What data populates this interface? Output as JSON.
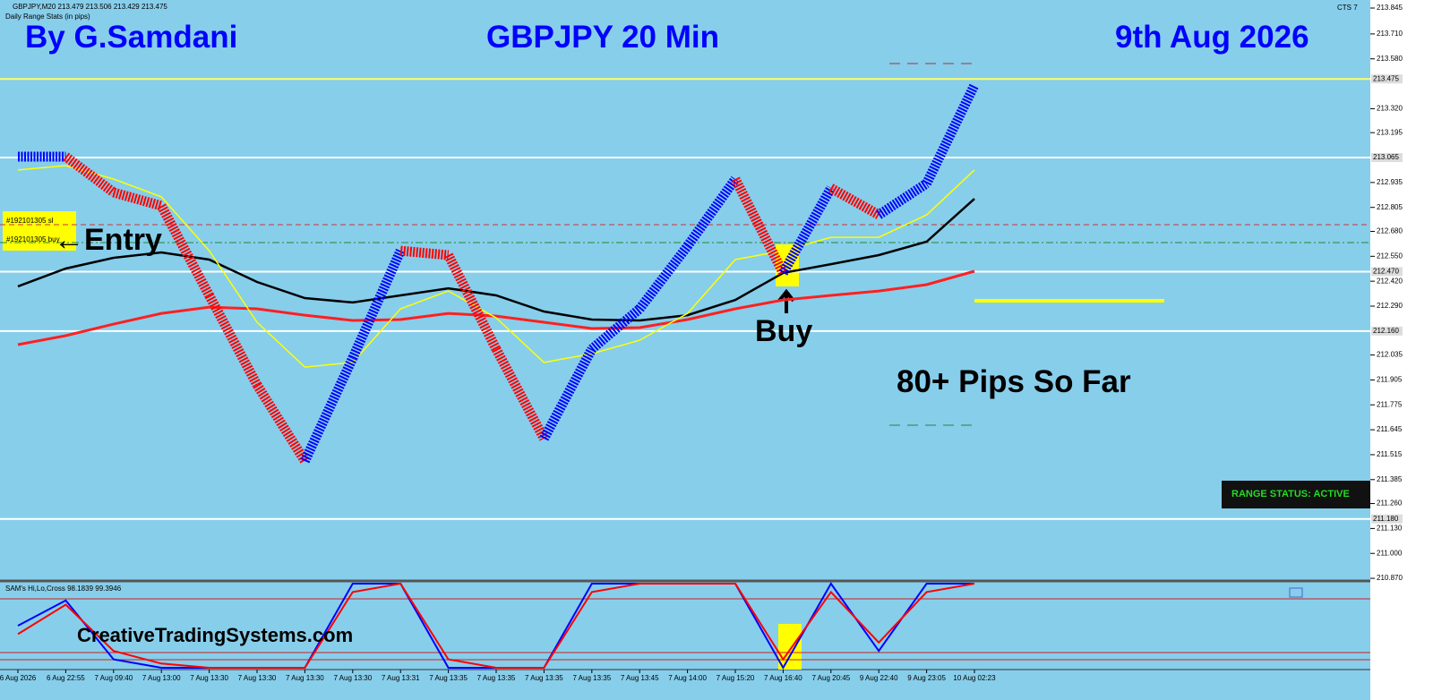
{
  "chart_data": [
    {
      "type": "line",
      "header": "GBPJPY,M20  213.479 213.506 213.429 213.475",
      "subheader": "Daily Range Stats (in pips)",
      "corner_label": "CTS 7",
      "categories": [
        "6 Aug 2026",
        "6 Aug 22:55",
        "7 Aug 09:40",
        "7 Aug 13:00",
        "7 Aug 13:30",
        "7 Aug 13:30",
        "7 Aug 13:30",
        "7 Aug 13:30",
        "7 Aug 13:31",
        "7 Aug 13:35",
        "7 Aug 13:35",
        "7 Aug 13:35",
        "7 Aug 13:35",
        "7 Aug 13:45",
        "7 Aug 14:00",
        "7 Aug 15:20",
        "7 Aug 16:40",
        "7 Aug 20:45",
        "9 Aug 22:40",
        "9 Aug 23:05",
        "10 Aug 02:23"
      ],
      "price": {
        "up_color": "#0000ff",
        "down_color": "#ff0000",
        "values": [
          213.07,
          213.07,
          212.883,
          212.813,
          212.346,
          211.879,
          211.482,
          212.019,
          212.579,
          212.556,
          212.066,
          211.599,
          212.066,
          212.276,
          212.603,
          212.953,
          212.463,
          212.906,
          212.766,
          212.93,
          213.443
        ]
      },
      "series": [
        {
          "color": "#ff2020",
          "width": 3,
          "values": [
            212.089,
            212.136,
            212.196,
            212.252,
            212.285,
            212.276,
            212.243,
            212.215,
            212.22,
            212.252,
            212.238,
            212.206,
            212.173,
            212.178,
            212.22,
            212.276,
            212.322,
            212.346,
            212.369,
            212.402,
            212.472
          ]
        },
        {
          "color": "#000000",
          "width": 2.5,
          "values": [
            212.393,
            212.486,
            212.542,
            212.57,
            212.533,
            212.416,
            212.332,
            212.309,
            212.346,
            212.383,
            212.346,
            212.262,
            212.22,
            212.215,
            212.243,
            212.322,
            212.463,
            212.509,
            212.556,
            212.626,
            212.85
          ]
        },
        {
          "color": "#ffff00",
          "width": 1.5,
          "values": [
            213.0,
            213.023,
            212.953,
            212.86,
            212.579,
            212.206,
            211.972,
            211.996,
            212.276,
            212.369,
            212.229,
            211.996,
            212.042,
            212.112,
            212.252,
            212.533,
            212.579,
            212.649,
            212.649,
            212.766,
            213.0
          ]
        }
      ],
      "ylim": [
        210.861,
        213.887
      ],
      "yticks": [
        213.845,
        {
          "value": 213.71,
          "label": "213.710"
        },
        {
          "value": 213.58,
          "label": "213.580"
        },
        {
          "value": 213.32,
          "label": "213.320"
        },
        213.195,
        212.935,
        212.805,
        {
          "value": 212.68,
          "label": "212.680"
        },
        {
          "value": 212.55,
          "label": "212.550"
        },
        {
          "value": 212.42,
          "label": "212.420"
        },
        {
          "value": 212.29,
          "label": "212.290"
        },
        212.035,
        211.905,
        211.775,
        211.645,
        211.515,
        211.385,
        {
          "value": 211.26,
          "label": "211.260"
        },
        {
          "value": 211.13,
          "label": "211.130"
        },
        {
          "value": 211.0,
          "label": "211.000"
        },
        {
          "value": 210.87,
          "label": "210.870"
        }
      ],
      "levels": [
        {
          "value": 213.475,
          "label": "213.475",
          "color": "#ffff66"
        },
        {
          "value": 213.065,
          "label": "213.065",
          "color": "#ffffff"
        },
        {
          "value": 212.47,
          "label": "212.470",
          "color": "#ffffff"
        },
        {
          "value": 212.16,
          "label": "212.160",
          "color": "#ffffff"
        },
        {
          "value": 211.18,
          "label": "211.180",
          "color": "#ffffff"
        }
      ],
      "annotations": {
        "author": "By G.Samdani",
        "title": "GBPJPY 20 Min",
        "date": "9th Aug 2026",
        "entry": "←Entry",
        "order_sl": "#192101305 sl",
        "order_buy": "#192101305 buy",
        "buy": "Buy",
        "pips": "80+ Pips So Far",
        "status": "RANGE STATUS: ACTIVE"
      }
    },
    {
      "type": "oscillator",
      "title": "SAM's Hi,Lo,Cross 98.1839 99.3946",
      "site": "CreativeTradingSystems.com",
      "ylim": [
        0,
        100
      ],
      "series": [
        {
          "color": "#0000ff",
          "values": [
            50,
            80,
            10,
            0,
            0,
            0,
            0,
            100,
            100,
            0,
            0,
            0,
            100,
            100,
            100,
            100,
            0,
            100,
            20,
            100,
            100
          ]
        },
        {
          "color": "#ff0000",
          "values": [
            40,
            75,
            20,
            5,
            0,
            0,
            0,
            90,
            100,
            10,
            0,
            0,
            90,
            100,
            100,
            100,
            10,
            90,
            30,
            90,
            100
          ]
        }
      ]
    }
  ]
}
